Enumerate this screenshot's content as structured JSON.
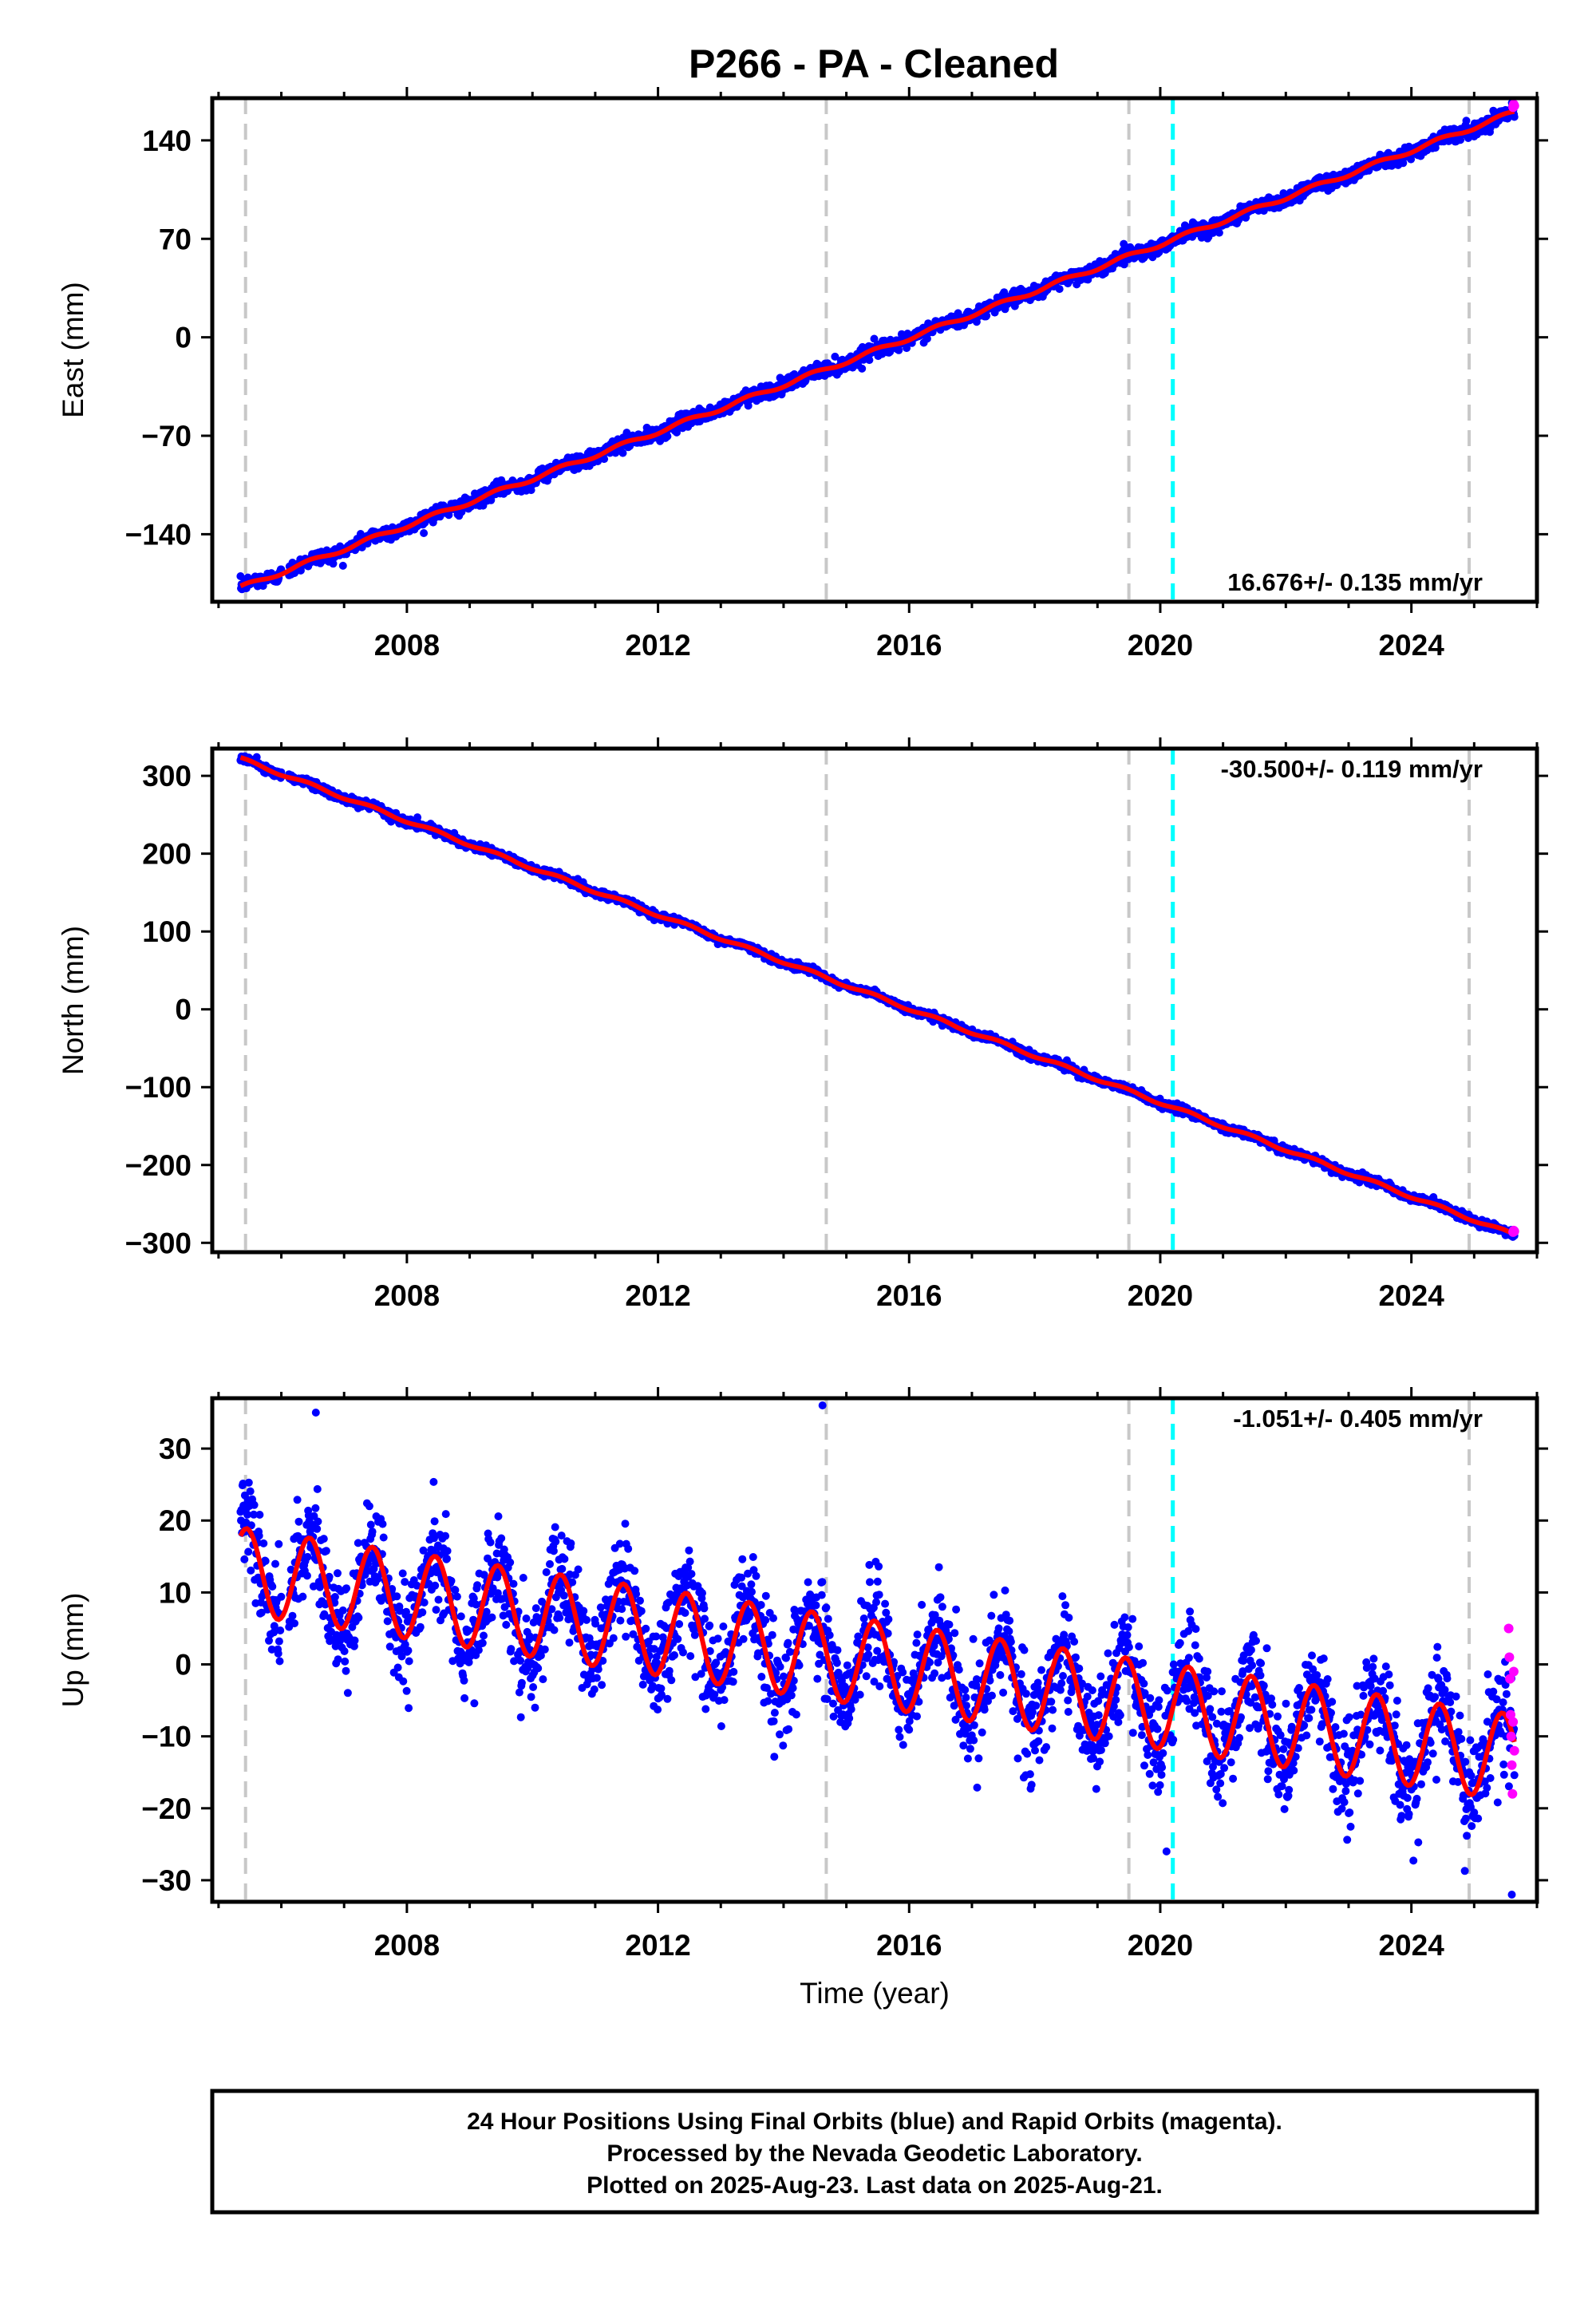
{
  "title": "P266  - PA - Cleaned",
  "footer": {
    "line1": "24 Hour Positions Using Final Orbits (blue) and Rapid Orbits (magenta).",
    "line2": "Processed by the Nevada Geodetic Laboratory.",
    "line3": "Plotted on 2025-Aug-23. Last data on 2025-Aug-21."
  },
  "colors": {
    "final_orbits": "#0000ff",
    "rapid_orbits": "#ff00ff",
    "model": "#ff0000",
    "event_line": "#c8c8c8",
    "equipment_line": "#00ffff"
  },
  "chart_data": [
    {
      "type": "scatter",
      "name": "east",
      "ylabel": "East (mm)",
      "xlabel": "",
      "xlim": [
        2004.9,
        2026.0
      ],
      "ylim": [
        -188,
        170
      ],
      "xticks": [
        2008,
        2012,
        2016,
        2020,
        2024
      ],
      "yticks": [
        -140,
        -70,
        0,
        70,
        140
      ],
      "rate_label": "16.676+/- 0.135 mm/yr",
      "rate_position": "bottom-right",
      "start_year": 2005.35,
      "end_year": 2025.64,
      "trend": {
        "start_value": -178,
        "end_value": 160,
        "rate_mm_per_yr": 16.676,
        "rate_sigma": 0.135
      },
      "seasonal_amplitude": 1.5,
      "noise": 2.5,
      "event_lines": [
        2005.43,
        2014.68,
        2019.5,
        2024.92
      ],
      "equipment_lines": [
        2020.2
      ]
    },
    {
      "type": "scatter",
      "name": "north",
      "ylabel": "North (mm)",
      "xlabel": "",
      "xlim": [
        2004.9,
        2026.0
      ],
      "ylim": [
        -312,
        335
      ],
      "xticks": [
        2008,
        2012,
        2016,
        2020,
        2024
      ],
      "yticks": [
        -300,
        -200,
        -100,
        0,
        100,
        200,
        300
      ],
      "rate_label": "-30.500+/- 0.119 mm/yr",
      "rate_position": "top-right",
      "start_year": 2005.35,
      "end_year": 2025.64,
      "trend": {
        "start_value": 322,
        "end_value": -290,
        "rate_mm_per_yr": -30.5,
        "rate_sigma": 0.119
      },
      "seasonal_amplitude": 2.0,
      "noise": 2.5,
      "event_lines": [
        2005.43,
        2014.68,
        2019.5,
        2024.92
      ],
      "equipment_lines": [
        2020.2
      ]
    },
    {
      "type": "scatter",
      "name": "up",
      "ylabel": "Up (mm)",
      "xlabel": "Time (year)",
      "xlim": [
        2004.9,
        2026.0
      ],
      "ylim": [
        -33,
        37
      ],
      "xticks": [
        2008,
        2012,
        2016,
        2020,
        2024
      ],
      "yticks": [
        -30,
        -20,
        -10,
        0,
        10,
        20,
        30
      ],
      "rate_label": "-1.051+/- 0.405 mm/yr",
      "rate_position": "top-right",
      "start_year": 2005.35,
      "end_year": 2025.64,
      "trend": {
        "start_value": 13,
        "end_value": -13,
        "rate_mm_per_yr": -1.051,
        "rate_sigma": 0.405
      },
      "seasonal_amplitude": 6.0,
      "noise": 3.5,
      "rapid_points": [
        [
          2025.55,
          5
        ],
        [
          2025.56,
          1
        ],
        [
          2025.57,
          -2
        ],
        [
          2025.58,
          -7
        ],
        [
          2025.59,
          -10
        ],
        [
          2025.6,
          -14
        ],
        [
          2025.61,
          -18
        ],
        [
          2025.62,
          -8
        ],
        [
          2025.63,
          -1
        ],
        [
          2025.64,
          -12
        ]
      ],
      "outliers": [
        [
          2006.55,
          35
        ],
        [
          2014.62,
          36
        ],
        [
          2025.6,
          -32
        ],
        [
          2020.1,
          -26
        ]
      ],
      "event_lines": [
        2005.43,
        2014.68,
        2019.5,
        2024.92
      ],
      "equipment_lines": [
        2020.2
      ]
    }
  ]
}
